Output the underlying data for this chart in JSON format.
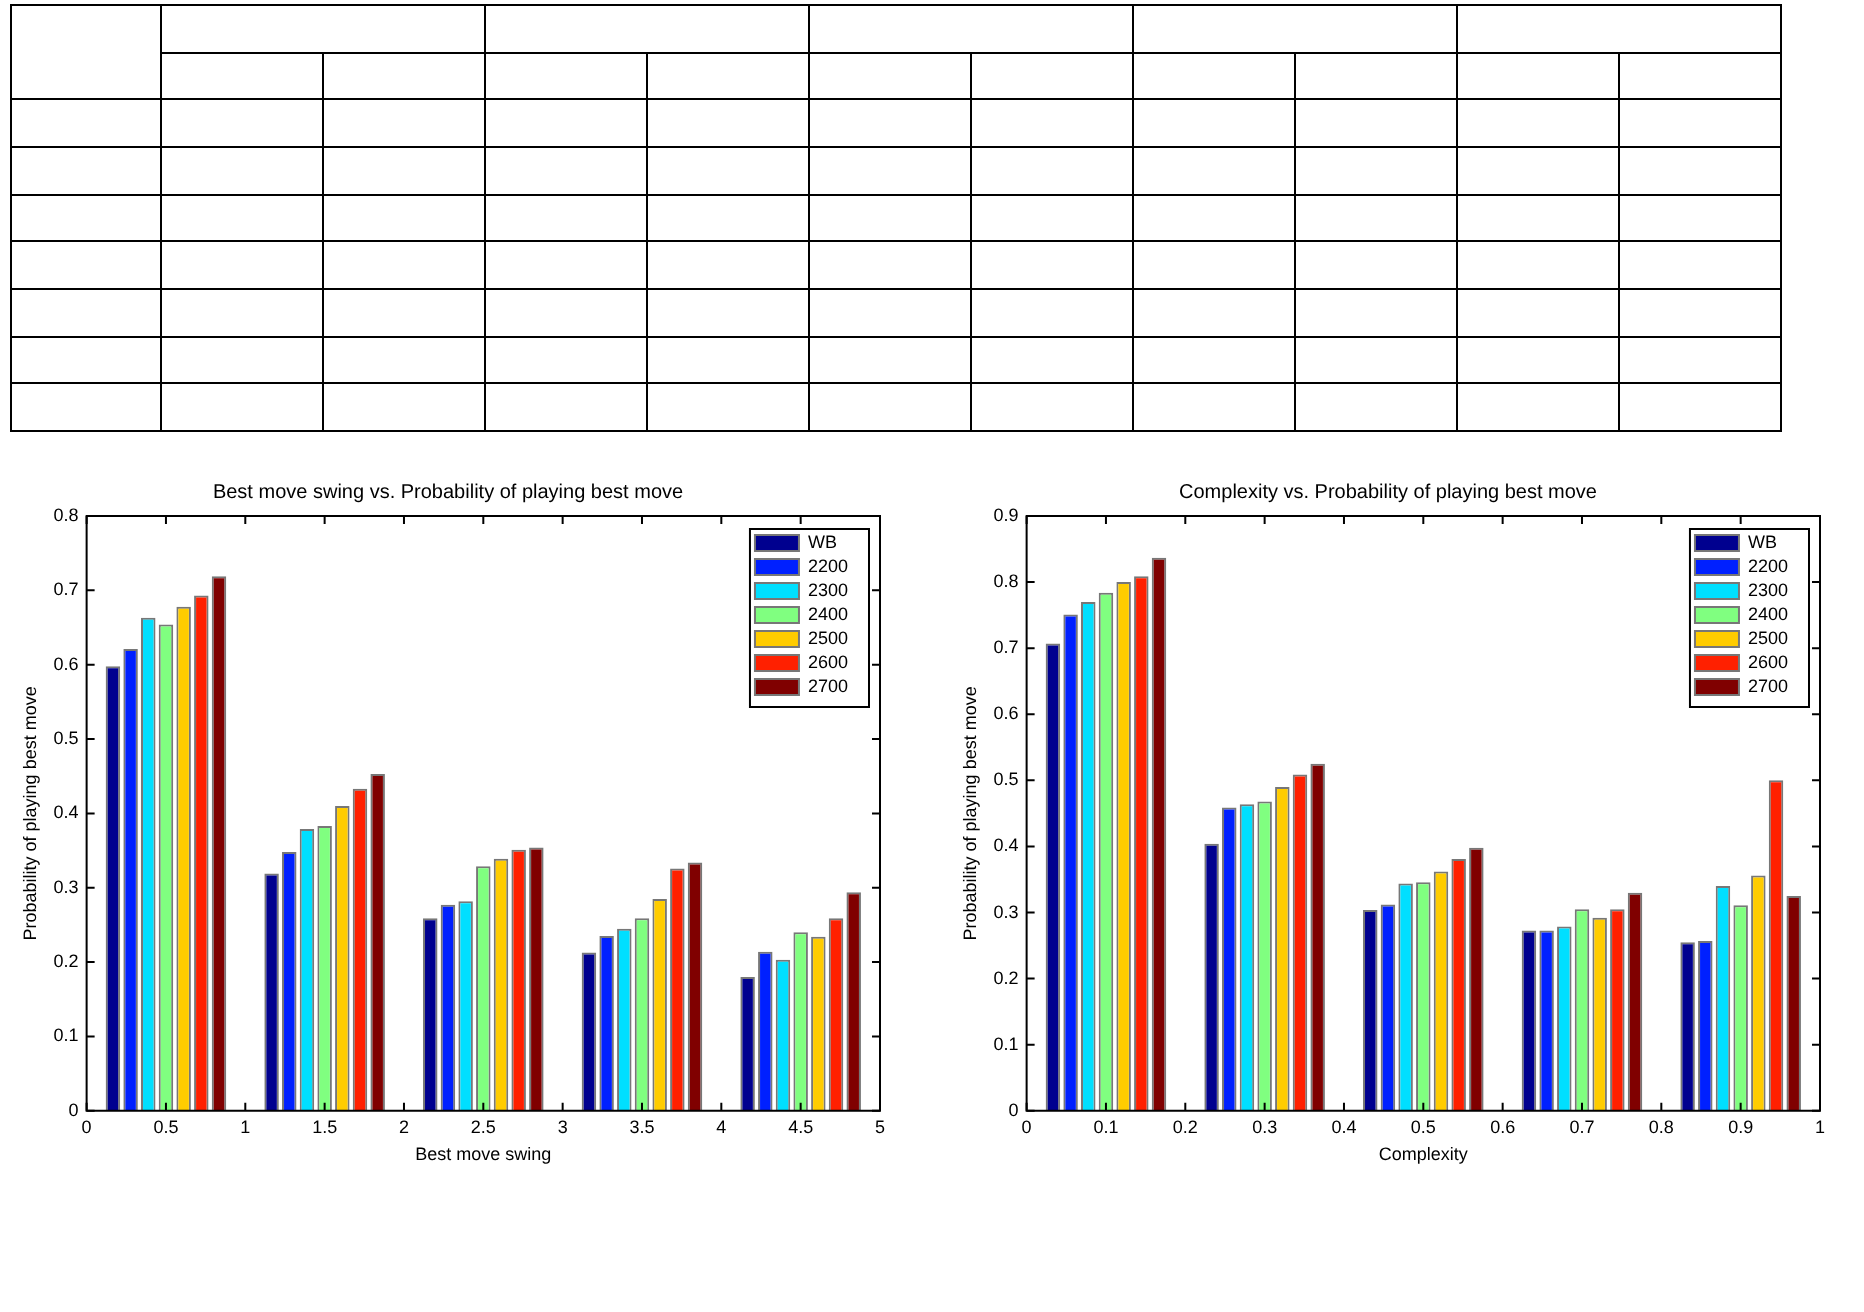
{
  "chart_data": [
    {
      "type": "bar",
      "title": "Best move swing vs. Probability of playing best move",
      "xlabel": "Best move swing",
      "ylabel": "Probability of playing best move",
      "x": [
        0.5,
        1.5,
        2.5,
        3.5,
        4.5
      ],
      "xlim": [
        0,
        5
      ],
      "xticks": [
        0,
        0.5,
        1,
        1.5,
        2,
        2.5,
        3,
        3.5,
        4,
        4.5,
        5
      ],
      "ylim": [
        0,
        0.8
      ],
      "yticks": [
        0,
        0.1,
        0.2,
        0.3,
        0.4,
        0.5,
        0.6,
        0.7,
        0.8
      ],
      "grid": false,
      "legend": "top right",
      "series": [
        {
          "name": "WB",
          "color": "#00008f",
          "values": [
            0.598,
            0.319,
            0.259,
            0.213,
            0.18
          ]
        },
        {
          "name": "2200",
          "color": "#0020ff",
          "values": [
            0.621,
            0.348,
            0.277,
            0.235,
            0.214
          ]
        },
        {
          "name": "2300",
          "color": "#00dfff",
          "values": [
            0.663,
            0.379,
            0.282,
            0.245,
            0.203
          ]
        },
        {
          "name": "2400",
          "color": "#80ff80",
          "values": [
            0.654,
            0.383,
            0.329,
            0.259,
            0.24
          ]
        },
        {
          "name": "2500",
          "color": "#ffcc00",
          "values": [
            0.678,
            0.41,
            0.339,
            0.285,
            0.234
          ]
        },
        {
          "name": "2600",
          "color": "#ff2000",
          "values": [
            0.693,
            0.433,
            0.351,
            0.326,
            0.259
          ]
        },
        {
          "name": "2700",
          "color": "#800000",
          "values": [
            0.719,
            0.453,
            0.354,
            0.334,
            0.294
          ]
        }
      ]
    },
    {
      "type": "bar",
      "title": "Complexity vs. Probability of playing best move",
      "xlabel": "Complexity",
      "ylabel": "Probability of playing best move",
      "x": [
        0.1,
        0.3,
        0.5,
        0.7,
        0.9
      ],
      "xlim": [
        0,
        1
      ],
      "xticks": [
        0,
        0.1,
        0.2,
        0.3,
        0.4,
        0.5,
        0.6,
        0.7,
        0.8,
        0.9,
        1
      ],
      "ylim": [
        0,
        0.9
      ],
      "yticks": [
        0,
        0.1,
        0.2,
        0.3,
        0.4,
        0.5,
        0.6,
        0.7,
        0.8,
        0.9
      ],
      "grid": false,
      "legend": "top right",
      "series": [
        {
          "name": "WB",
          "color": "#00008f",
          "values": [
            0.707,
            0.404,
            0.304,
            0.273,
            0.255
          ]
        },
        {
          "name": "2200",
          "color": "#0020ff",
          "values": [
            0.751,
            0.459,
            0.312,
            0.273,
            0.257
          ]
        },
        {
          "name": "2300",
          "color": "#00dfff",
          "values": [
            0.77,
            0.464,
            0.344,
            0.279,
            0.34
          ]
        },
        {
          "name": "2400",
          "color": "#80ff80",
          "values": [
            0.784,
            0.468,
            0.346,
            0.305,
            0.311
          ]
        },
        {
          "name": "2500",
          "color": "#ffcc00",
          "values": [
            0.8,
            0.49,
            0.362,
            0.292,
            0.356
          ]
        },
        {
          "name": "2600",
          "color": "#ff2000",
          "values": [
            0.809,
            0.509,
            0.381,
            0.305,
            0.5
          ]
        },
        {
          "name": "2700",
          "color": "#800000",
          "values": [
            0.837,
            0.525,
            0.398,
            0.33,
            0.325
          ]
        }
      ]
    }
  ]
}
